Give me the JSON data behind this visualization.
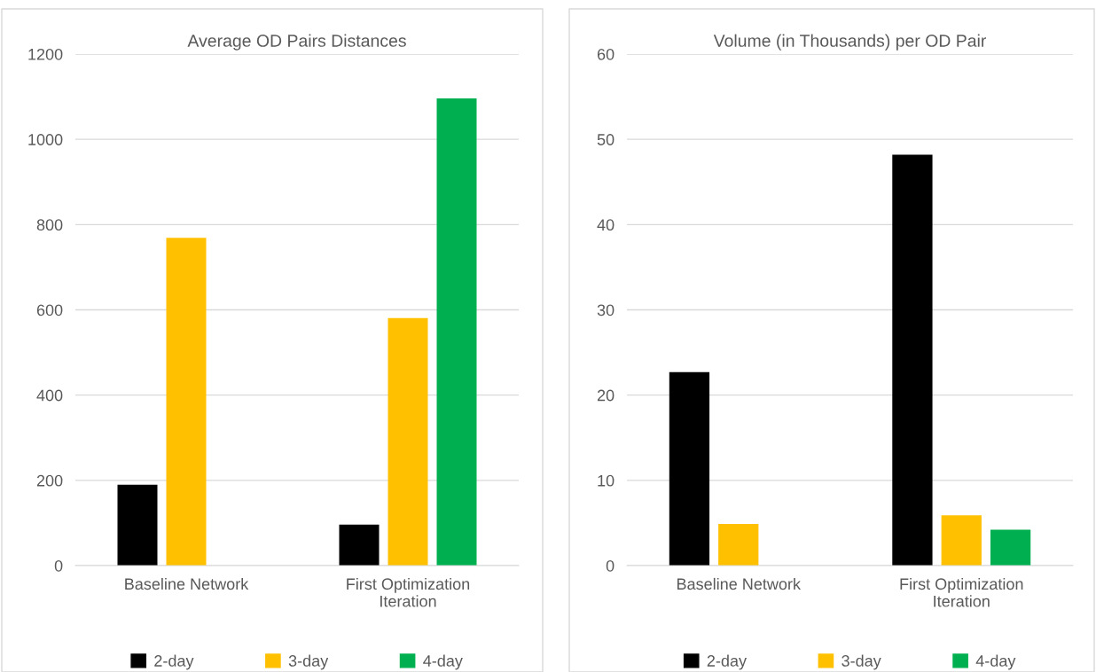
{
  "chart_data": [
    {
      "type": "bar",
      "title": "Average OD Pairs Distances",
      "categories": [
        "Baseline Network",
        "First Optimization Iteration"
      ],
      "ylim": [
        0,
        1200
      ],
      "yticks": [
        0,
        200,
        400,
        600,
        800,
        1000,
        1200
      ],
      "grid": "y",
      "legend": "bottom",
      "series": [
        {
          "name": "2-day",
          "color": "#000000",
          "values": [
            190,
            96
          ]
        },
        {
          "name": "3-day",
          "color": "#ffc000",
          "values": [
            769,
            581
          ]
        },
        {
          "name": "4-day",
          "color": "#00b050",
          "values": [
            null,
            1096
          ]
        }
      ]
    },
    {
      "type": "bar",
      "title": "Volume (in Thousands) per OD Pair",
      "categories": [
        "Baseline Network",
        "First Optimization Iteration"
      ],
      "ylim": [
        0,
        60
      ],
      "yticks": [
        0,
        10,
        20,
        30,
        40,
        50,
        60
      ],
      "grid": "y",
      "legend": "bottom",
      "series": [
        {
          "name": "2-day",
          "color": "#000000",
          "values": [
            22.7,
            48.2
          ]
        },
        {
          "name": "3-day",
          "color": "#ffc000",
          "values": [
            4.9,
            5.9
          ]
        },
        {
          "name": "4-day",
          "color": "#00b050",
          "values": [
            null,
            4.2
          ]
        }
      ]
    }
  ]
}
